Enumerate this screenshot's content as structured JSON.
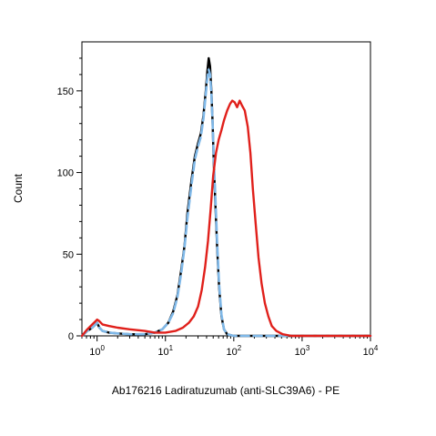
{
  "chart_data": {
    "type": "line",
    "title": "",
    "xlabel": "Ab176216 Ladiratuzumab (anti-SLC39A6) - PE",
    "ylabel": "Count",
    "xscale": "log",
    "xlim": [
      0.6,
      10000
    ],
    "ylim": [
      0,
      180
    ],
    "yticks": [
      0,
      50,
      100,
      150
    ],
    "xtick_base": "10",
    "xtick_exponents": [
      "0",
      "1",
      "2",
      "3",
      "4"
    ],
    "grid": false,
    "legend": "none",
    "series": [
      {
        "color": "#000000",
        "style": "solid",
        "points": [
          [
            0.6,
            0
          ],
          [
            0.72,
            3
          ],
          [
            0.85,
            5
          ],
          [
            0.95,
            7
          ],
          [
            1.0,
            8
          ],
          [
            1.08,
            5
          ],
          [
            1.2,
            3
          ],
          [
            1.5,
            2
          ],
          [
            2,
            1.5
          ],
          [
            3,
            1
          ],
          [
            5,
            1
          ],
          [
            7,
            2
          ],
          [
            9,
            4
          ],
          [
            11,
            8
          ],
          [
            13,
            15
          ],
          [
            15,
            25
          ],
          [
            17,
            40
          ],
          [
            19,
            55
          ],
          [
            21,
            75
          ],
          [
            24,
            95
          ],
          [
            27,
            110
          ],
          [
            30,
            118
          ],
          [
            33,
            124
          ],
          [
            36,
            135
          ],
          [
            39,
            150
          ],
          [
            41,
            162
          ],
          [
            43,
            170
          ],
          [
            45,
            165
          ],
          [
            47,
            150
          ],
          [
            49,
            130
          ],
          [
            51,
            105
          ],
          [
            54,
            80
          ],
          [
            57,
            55
          ],
          [
            61,
            30
          ],
          [
            66,
            12
          ],
          [
            72,
            4
          ],
          [
            80,
            1
          ],
          [
            100,
            0
          ],
          [
            10000,
            0
          ]
        ]
      },
      {
        "color": "#7fb8e8",
        "style": "dashed",
        "points": [
          [
            0.6,
            0
          ],
          [
            0.72,
            3
          ],
          [
            0.85,
            5
          ],
          [
            0.95,
            7
          ],
          [
            1.0,
            8
          ],
          [
            1.08,
            5
          ],
          [
            1.2,
            3
          ],
          [
            1.5,
            2
          ],
          [
            2,
            1.5
          ],
          [
            3,
            1
          ],
          [
            5,
            1
          ],
          [
            7,
            2
          ],
          [
            9,
            4
          ],
          [
            11,
            8
          ],
          [
            13,
            14
          ],
          [
            15,
            24
          ],
          [
            17,
            38
          ],
          [
            19,
            54
          ],
          [
            21,
            72
          ],
          [
            24,
            92
          ],
          [
            27,
            108
          ],
          [
            30,
            116
          ],
          [
            33,
            122
          ],
          [
            36,
            133
          ],
          [
            39,
            148
          ],
          [
            41,
            158
          ],
          [
            43,
            163
          ],
          [
            45,
            160
          ],
          [
            47,
            148
          ],
          [
            49,
            130
          ],
          [
            51,
            108
          ],
          [
            54,
            84
          ],
          [
            57,
            58
          ],
          [
            61,
            32
          ],
          [
            66,
            13
          ],
          [
            72,
            4
          ],
          [
            80,
            1
          ],
          [
            100,
            0
          ],
          [
            10000,
            0
          ]
        ]
      },
      {
        "color": "#e0201b",
        "style": "solid",
        "points": [
          [
            0.6,
            0
          ],
          [
            0.72,
            4
          ],
          [
            0.85,
            7
          ],
          [
            0.95,
            9
          ],
          [
            1.0,
            10
          ],
          [
            1.08,
            9
          ],
          [
            1.2,
            7
          ],
          [
            1.5,
            6
          ],
          [
            2,
            5
          ],
          [
            3,
            4
          ],
          [
            5,
            3
          ],
          [
            7,
            2
          ],
          [
            10,
            2
          ],
          [
            14,
            3
          ],
          [
            18,
            5
          ],
          [
            22,
            8
          ],
          [
            26,
            12
          ],
          [
            30,
            18
          ],
          [
            34,
            28
          ],
          [
            38,
            42
          ],
          [
            42,
            58
          ],
          [
            46,
            78
          ],
          [
            50,
            98
          ],
          [
            55,
            112
          ],
          [
            60,
            120
          ],
          [
            66,
            126
          ],
          [
            72,
            132
          ],
          [
            80,
            138
          ],
          [
            88,
            142
          ],
          [
            95,
            144
          ],
          [
            103,
            143
          ],
          [
            112,
            140
          ],
          [
            122,
            144
          ],
          [
            132,
            141
          ],
          [
            145,
            138
          ],
          [
            160,
            128
          ],
          [
            175,
            112
          ],
          [
            190,
            90
          ],
          [
            210,
            68
          ],
          [
            230,
            48
          ],
          [
            255,
            32
          ],
          [
            285,
            20
          ],
          [
            320,
            12
          ],
          [
            360,
            6
          ],
          [
            420,
            3
          ],
          [
            520,
            1
          ],
          [
            700,
            0
          ],
          [
            10000,
            0
          ]
        ]
      }
    ]
  }
}
